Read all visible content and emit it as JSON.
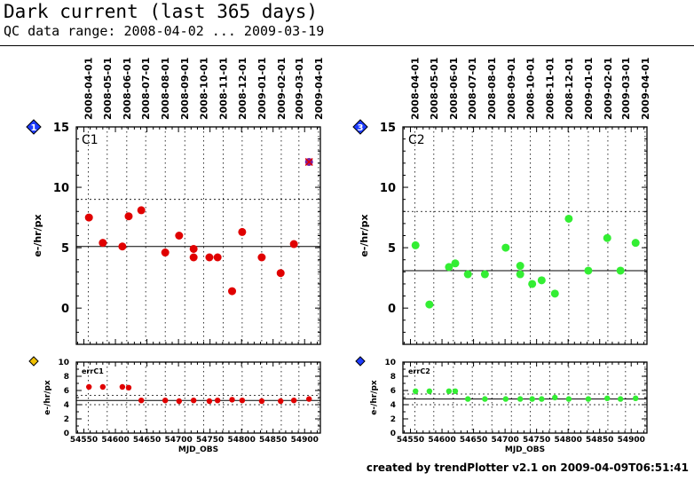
{
  "header": {
    "title": "Dark current (last 365 days)",
    "subtitle": "QC data range: 2008-04-02 ... 2009-03-19"
  },
  "footer": "created by trendPlotter v2.1 on 2009-04-09T06:51:41",
  "date_ticks": [
    "2008-04-01",
    "2008-05-01",
    "2008-06-01",
    "2008-07-01",
    "2008-08-01",
    "2008-09-01",
    "2008-10-01",
    "2008-11-01",
    "2008-12-01",
    "2009-01-01",
    "2009-02-01",
    "2009-03-01",
    "2009-04-01"
  ],
  "chart_data": [
    {
      "type": "scatter",
      "panel": "main-left",
      "badge": "1",
      "badge_color": "#1e3cff",
      "label": "C1",
      "ylabel": "e-/hr/px",
      "xlim": [
        54538,
        54925
      ],
      "ylim": [
        -3,
        15
      ],
      "yticks": [
        0,
        5,
        10,
        15
      ],
      "reference_line": 5.1,
      "upper_limit": 9.0,
      "color": "#e00000",
      "points": [
        {
          "x": 54558,
          "y": 7.5
        },
        {
          "x": 54580,
          "y": 5.4
        },
        {
          "x": 54611,
          "y": 5.1
        },
        {
          "x": 54621,
          "y": 7.6
        },
        {
          "x": 54641,
          "y": 8.1
        },
        {
          "x": 54679,
          "y": 4.6
        },
        {
          "x": 54701,
          "y": 6.0
        },
        {
          "x": 54724,
          "y": 4.9
        },
        {
          "x": 54724,
          "y": 4.2
        },
        {
          "x": 54749,
          "y": 4.2
        },
        {
          "x": 54762,
          "y": 4.2
        },
        {
          "x": 54785,
          "y": 1.4
        },
        {
          "x": 54801,
          "y": 6.3
        },
        {
          "x": 54832,
          "y": 4.2
        },
        {
          "x": 54862,
          "y": 2.9
        },
        {
          "x": 54883,
          "y": 5.3
        }
      ],
      "outlier": {
        "x": 54907,
        "y": 12.1,
        "color": "#7b1fa2"
      }
    },
    {
      "type": "scatter",
      "panel": "err-left",
      "badge_color": "#f0c000",
      "label": "errC1",
      "ylabel": "e-/hr/px",
      "xlabel": "MJD_OBS",
      "xlim": [
        54538,
        54925
      ],
      "ylim": [
        0,
        10
      ],
      "yticks": [
        0,
        2,
        4,
        6,
        8,
        10
      ],
      "xticks": [
        54550,
        54600,
        54650,
        54700,
        54750,
        54800,
        54850,
        54900
      ],
      "reference_line": 4.6,
      "lower_limit": 4.0,
      "upper_limit": 5.3,
      "color": "#e00000",
      "points": [
        {
          "x": 54558,
          "y": 6.5
        },
        {
          "x": 54580,
          "y": 6.5
        },
        {
          "x": 54611,
          "y": 6.5
        },
        {
          "x": 54621,
          "y": 6.4
        },
        {
          "x": 54641,
          "y": 4.6
        },
        {
          "x": 54679,
          "y": 4.6
        },
        {
          "x": 54701,
          "y": 4.5
        },
        {
          "x": 54724,
          "y": 4.6
        },
        {
          "x": 54749,
          "y": 4.5
        },
        {
          "x": 54762,
          "y": 4.6
        },
        {
          "x": 54785,
          "y": 4.7
        },
        {
          "x": 54801,
          "y": 4.6
        },
        {
          "x": 54832,
          "y": 4.5
        },
        {
          "x": 54862,
          "y": 4.5
        },
        {
          "x": 54883,
          "y": 4.6
        },
        {
          "x": 54907,
          "y": 4.8
        }
      ]
    },
    {
      "type": "scatter",
      "panel": "main-right",
      "badge": "3",
      "badge_color": "#1e3cff",
      "label": "C2",
      "ylabel": "e-/hr/px",
      "xlim": [
        54538,
        54925
      ],
      "ylim": [
        -3,
        15
      ],
      "yticks": [
        0,
        5,
        10,
        15
      ],
      "reference_line": 3.1,
      "upper_limit": 8.0,
      "color": "#33ee33",
      "points": [
        {
          "x": 54558,
          "y": 5.2
        },
        {
          "x": 54580,
          "y": 0.3
        },
        {
          "x": 54611,
          "y": 3.4
        },
        {
          "x": 54621,
          "y": 3.7
        },
        {
          "x": 54641,
          "y": 2.8
        },
        {
          "x": 54668,
          "y": 2.8
        },
        {
          "x": 54701,
          "y": 5.0
        },
        {
          "x": 54724,
          "y": 3.5
        },
        {
          "x": 54724,
          "y": 2.8
        },
        {
          "x": 54743,
          "y": 2.0
        },
        {
          "x": 54758,
          "y": 2.3
        },
        {
          "x": 54779,
          "y": 1.2
        },
        {
          "x": 54801,
          "y": 7.4
        },
        {
          "x": 54832,
          "y": 3.1
        },
        {
          "x": 54862,
          "y": 5.8
        },
        {
          "x": 54883,
          "y": 3.1
        },
        {
          "x": 54907,
          "y": 5.4
        }
      ]
    },
    {
      "type": "scatter",
      "panel": "err-right",
      "badge_color": "#1e3cff",
      "label": "errC2",
      "ylabel": "e-/hr/px",
      "xlabel": "MJD_OBS",
      "xlim": [
        54538,
        54925
      ],
      "ylim": [
        0,
        10
      ],
      "yticks": [
        0,
        2,
        4,
        6,
        8,
        10
      ],
      "xticks": [
        54550,
        54600,
        54650,
        54700,
        54750,
        54800,
        54850,
        54900
      ],
      "reference_line": 4.8,
      "lower_limit": 4.0,
      "upper_limit": 5.5,
      "color": "#33ee33",
      "points": [
        {
          "x": 54558,
          "y": 5.9
        },
        {
          "x": 54580,
          "y": 5.9
        },
        {
          "x": 54611,
          "y": 5.9
        },
        {
          "x": 54621,
          "y": 5.9
        },
        {
          "x": 54641,
          "y": 4.8
        },
        {
          "x": 54668,
          "y": 4.8
        },
        {
          "x": 54701,
          "y": 4.8
        },
        {
          "x": 54724,
          "y": 4.8
        },
        {
          "x": 54743,
          "y": 4.8
        },
        {
          "x": 54758,
          "y": 4.8
        },
        {
          "x": 54779,
          "y": 5.0
        },
        {
          "x": 54801,
          "y": 4.8
        },
        {
          "x": 54832,
          "y": 4.8
        },
        {
          "x": 54862,
          "y": 4.9
        },
        {
          "x": 54883,
          "y": 4.8
        },
        {
          "x": 54907,
          "y": 4.9
        }
      ]
    }
  ]
}
